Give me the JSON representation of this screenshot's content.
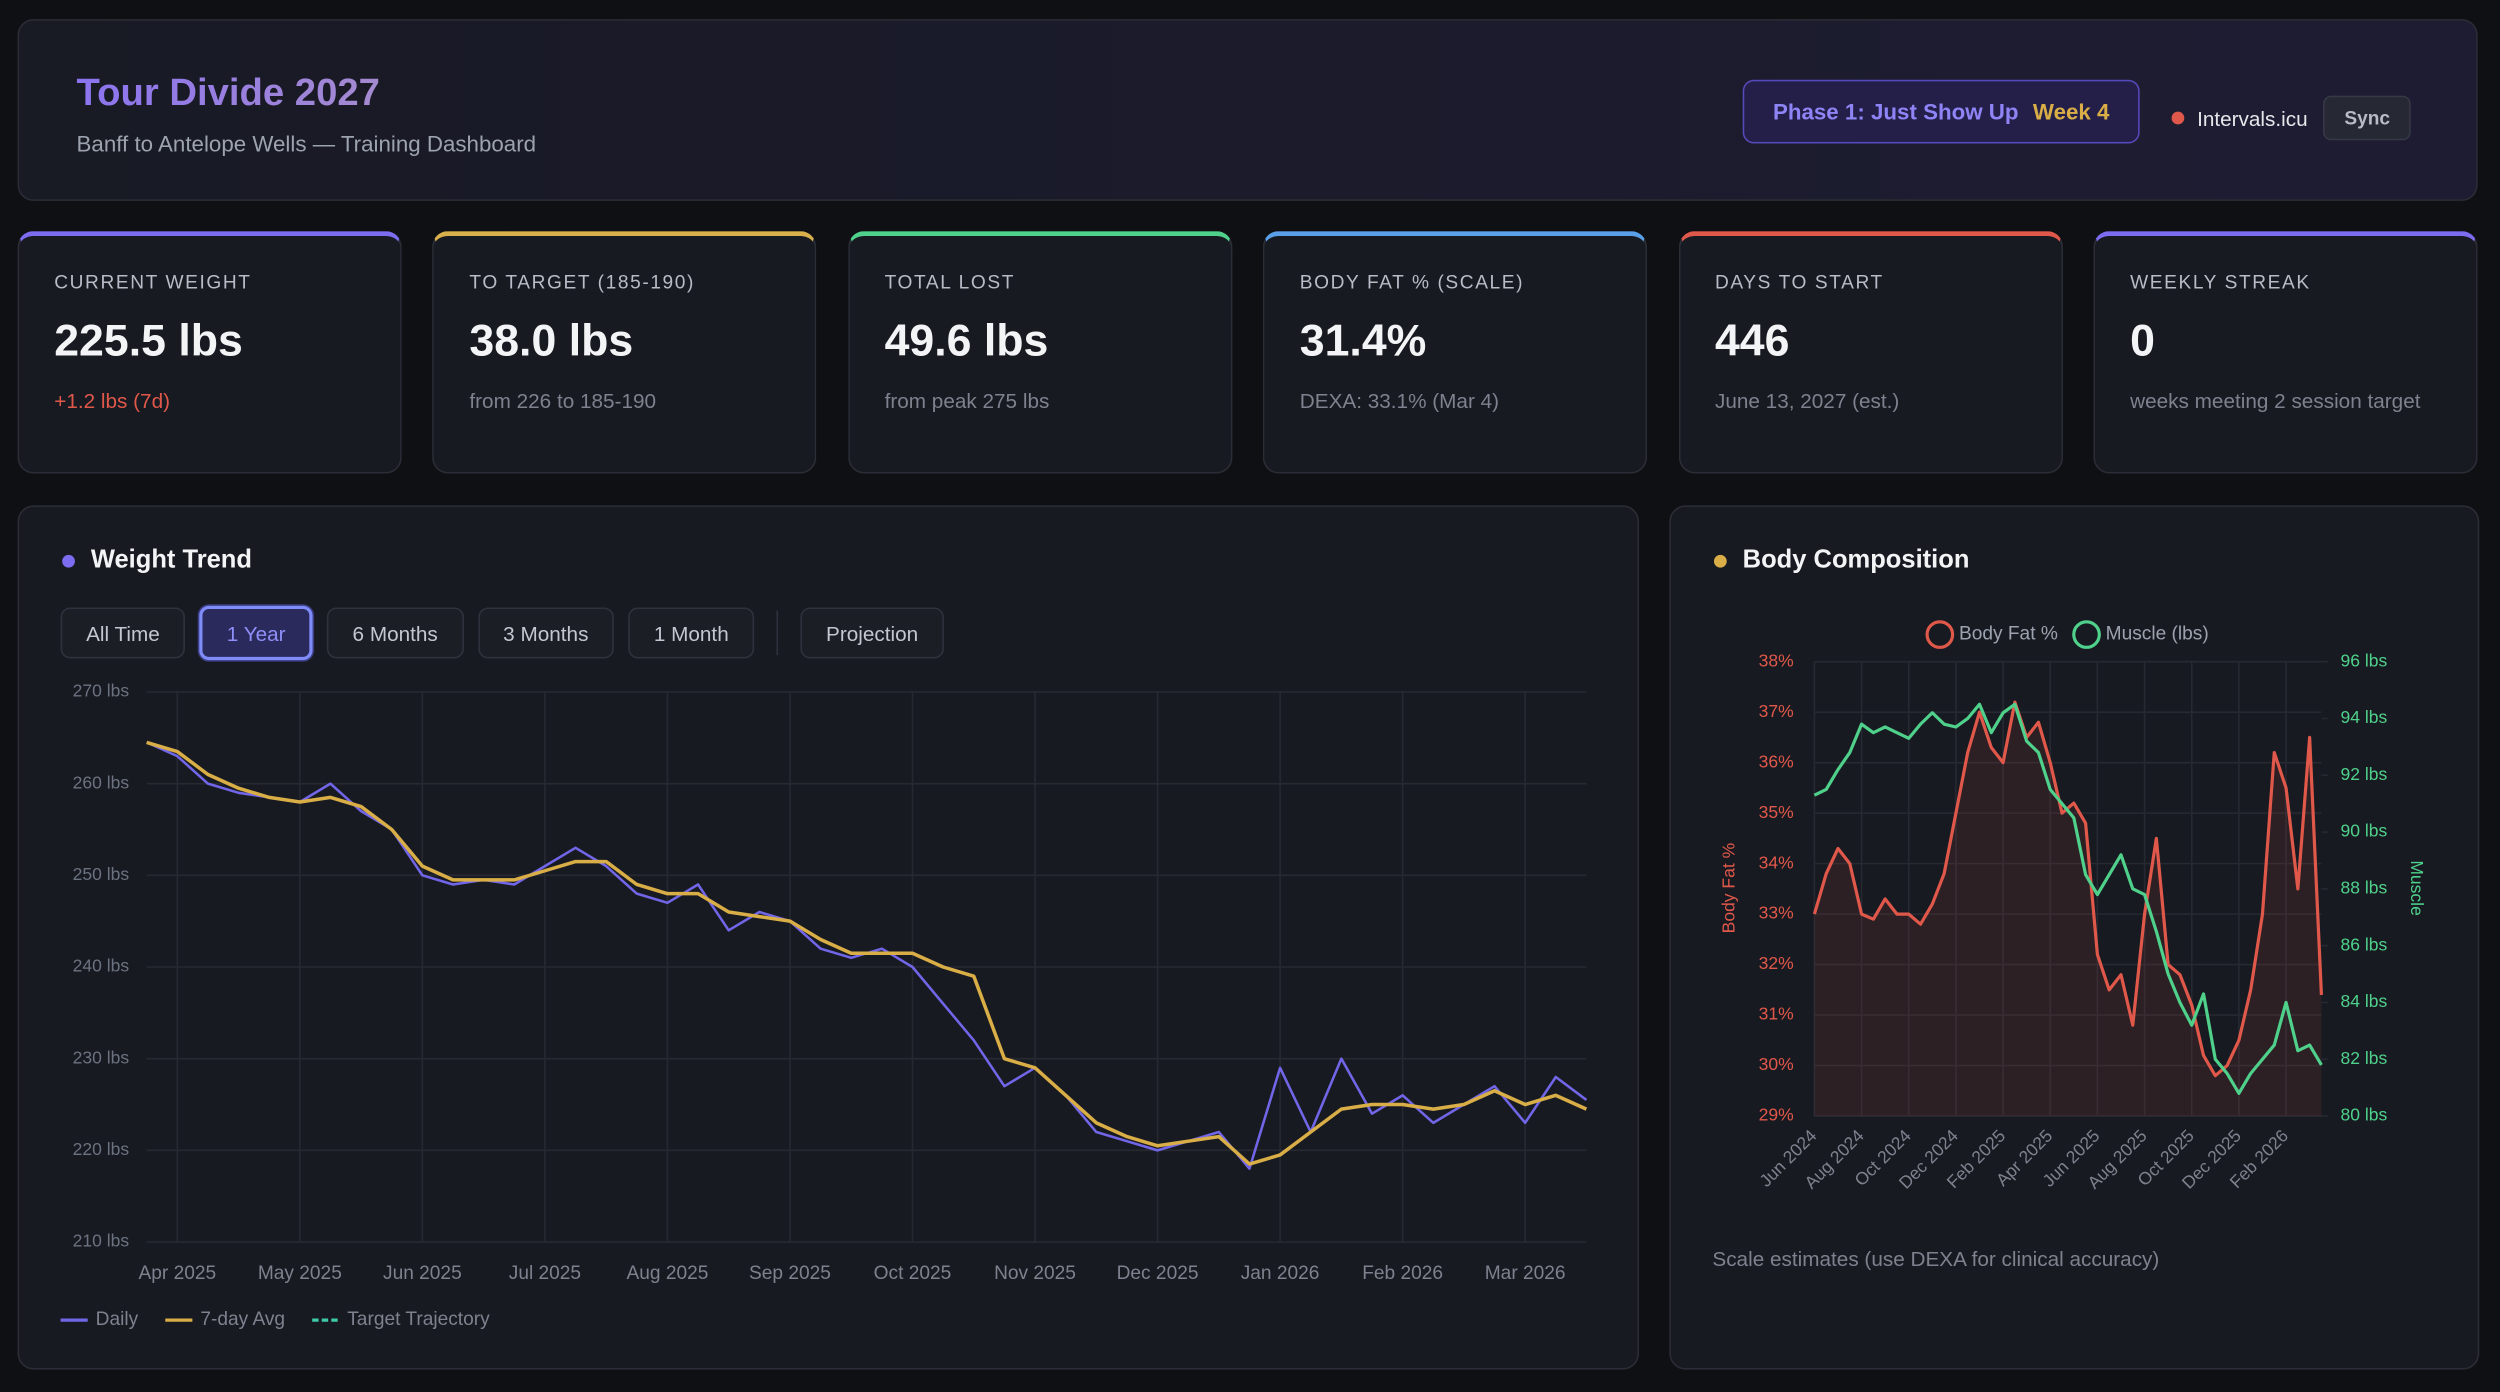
{
  "header": {
    "title": "Tour Divide 2027",
    "subtitle": "Banff to Antelope Wells — Training Dashboard",
    "phase": "Phase 1: Just Show Up",
    "week": "Week 4",
    "integration": "Intervals.icu",
    "sync": "Sync"
  },
  "cards": [
    {
      "label": "CURRENT WEIGHT",
      "value": "225.5 lbs",
      "sub": "+1.2 lbs (7d)",
      "color": "#7c6cf0",
      "sub_color": "#e0584a"
    },
    {
      "label": "TO TARGET (185-190)",
      "value": "38.0 lbs",
      "sub": "from 226 to 185-190",
      "color": "#d8b04c"
    },
    {
      "label": "TOTAL LOST",
      "value": "49.6 lbs",
      "sub": "from peak 275 lbs",
      "color": "#4fd18b"
    },
    {
      "label": "BODY FAT % (SCALE)",
      "value": "31.4%",
      "sub": "DEXA: 33.1% (Mar 4)",
      "color": "#5aa0e8"
    },
    {
      "label": "DAYS TO START",
      "value": "446",
      "sub": "June 13, 2027 (est.)",
      "color": "#e0584a"
    },
    {
      "label": "WEEKLY STREAK",
      "value": "0",
      "sub": "weeks meeting 2 session target",
      "color": "#7c6cf0"
    }
  ],
  "weight_panel": {
    "title": "Weight Trend",
    "ranges": [
      {
        "label": "All Time",
        "active": false
      },
      {
        "label": "1 Year",
        "active": true
      },
      {
        "label": "6 Months",
        "active": false
      },
      {
        "label": "3 Months",
        "active": false
      },
      {
        "label": "1 Month",
        "active": false
      }
    ],
    "projection": "Projection"
  },
  "composition_panel": {
    "title": "Body Composition",
    "note": "Scale estimates (use DEXA for clinical accuracy)"
  },
  "chart_data": [
    {
      "type": "line",
      "legend": "bottom-left",
      "grid": true,
      "categories": [
        null,
        "Apr 2025",
        null,
        null,
        null,
        "May 2025",
        null,
        null,
        null,
        "Jun 2025",
        null,
        null,
        null,
        "Jul 2025",
        null,
        null,
        null,
        "Aug 2025",
        null,
        null,
        null,
        "Sep 2025",
        null,
        null,
        null,
        "Oct 2025",
        null,
        null,
        null,
        "Nov 2025",
        null,
        null,
        null,
        "Dec 2025",
        null,
        null,
        null,
        "Jan 2026",
        null,
        null,
        null,
        "Feb 2026",
        null,
        null,
        null,
        "Mar 2026",
        null,
        null
      ],
      "ylim": [
        210,
        270
      ],
      "yticks": [
        {
          "value": 210,
          "label": "210 lbs"
        },
        {
          "value": 220,
          "label": "220 lbs"
        },
        {
          "value": 230,
          "label": "230 lbs"
        },
        {
          "value": 240,
          "label": "240 lbs"
        },
        {
          "value": 250,
          "label": "250 lbs"
        },
        {
          "value": 260,
          "label": "260 lbs"
        },
        {
          "value": 270,
          "label": "270 lbs"
        }
      ],
      "series": [
        {
          "name": "Daily",
          "color": "#7166e8",
          "values": [
            264.5,
            263,
            260,
            259,
            258.5,
            258,
            260,
            257,
            255,
            250,
            249,
            249.5,
            249,
            251,
            253,
            251,
            248,
            247,
            249,
            244,
            246,
            245,
            242,
            241,
            242,
            240,
            236,
            232,
            227,
            229,
            226,
            222,
            221,
            220,
            221,
            222,
            218,
            229,
            222,
            230,
            224,
            226,
            223,
            225,
            227,
            223,
            228,
            225.5
          ]
        },
        {
          "name": "7-day Avg",
          "color": "#d9ae47",
          "values": [
            264.5,
            263.5,
            261,
            259.5,
            258.5,
            258,
            258.5,
            257.5,
            255,
            251,
            249.5,
            249.5,
            249.5,
            250.5,
            251.5,
            251.5,
            249,
            248,
            248,
            246,
            245.5,
            245,
            243,
            241.5,
            241.5,
            241.5,
            240,
            239,
            230,
            229,
            226,
            223,
            221.5,
            220.5,
            221,
            221.5,
            218.5,
            219.5,
            222,
            224.5,
            225,
            225,
            224.5,
            225,
            226.5,
            225,
            226,
            224.5
          ]
        },
        {
          "name": "Target Trajectory",
          "color": "#3ec9a7",
          "dash": true,
          "values": [
            null,
            null,
            null,
            null,
            null,
            null,
            null,
            null,
            null,
            null,
            null,
            null,
            null,
            null,
            null,
            null,
            null,
            null,
            null,
            null,
            null,
            null,
            null,
            null,
            null,
            null,
            null,
            null,
            null,
            null,
            null,
            null,
            null,
            null,
            null,
            null,
            null,
            null,
            null,
            null,
            null,
            null,
            null,
            null,
            null,
            null,
            null,
            null
          ]
        }
      ]
    },
    {
      "type": "line",
      "legend": "top",
      "grid": true,
      "ylabel": "Body Fat %",
      "y2label": "Muscle",
      "categories": [
        "Jun 2024",
        null,
        null,
        null,
        "Aug 2024",
        null,
        null,
        null,
        "Oct 2024",
        null,
        null,
        null,
        "Dec 2024",
        null,
        null,
        null,
        "Feb 2025",
        null,
        null,
        null,
        "Apr 2025",
        null,
        null,
        null,
        "Jun 2025",
        null,
        null,
        null,
        "Aug 2025",
        null,
        null,
        null,
        "Oct 2025",
        null,
        null,
        null,
        "Dec 2025",
        null,
        null,
        null,
        "Feb 2026",
        null,
        null,
        null
      ],
      "ylim": [
        29,
        38
      ],
      "yticks": [
        {
          "value": 29,
          "label": "29%"
        },
        {
          "value": 30,
          "label": "30%"
        },
        {
          "value": 31,
          "label": "31%"
        },
        {
          "value": 32,
          "label": "32%"
        },
        {
          "value": 33,
          "label": "33%"
        },
        {
          "value": 34,
          "label": "34%"
        },
        {
          "value": 35,
          "label": "35%"
        },
        {
          "value": 36,
          "label": "36%"
        },
        {
          "value": 37,
          "label": "37%"
        },
        {
          "value": 38,
          "label": "38%"
        }
      ],
      "y2lim": [
        80,
        96
      ],
      "y2ticks": [
        {
          "value": 80,
          "label": "80 lbs"
        },
        {
          "value": 82,
          "label": "82 lbs"
        },
        {
          "value": 84,
          "label": "84 lbs"
        },
        {
          "value": 86,
          "label": "86 lbs"
        },
        {
          "value": 88,
          "label": "88 lbs"
        },
        {
          "value": 90,
          "label": "90 lbs"
        },
        {
          "value": 92,
          "label": "92 lbs"
        },
        {
          "value": 94,
          "label": "94 lbs"
        },
        {
          "value": 96,
          "label": "96 lbs"
        }
      ],
      "series": [
        {
          "name": "Body Fat %",
          "color": "#e0584a",
          "fill": true,
          "values": [
            33.0,
            33.8,
            34.3,
            34.0,
            33.0,
            32.9,
            33.3,
            33.0,
            33.0,
            32.8,
            33.2,
            33.8,
            35.0,
            36.2,
            37.0,
            36.3,
            36.0,
            37.2,
            36.5,
            36.8,
            36.0,
            35.0,
            35.2,
            34.8,
            32.2,
            31.5,
            31.8,
            30.8,
            33.0,
            34.5,
            32.0,
            31.8,
            31.2,
            30.2,
            29.8,
            30.0,
            30.5,
            31.5,
            33.0,
            36.2,
            35.5,
            33.5,
            36.5,
            31.4
          ]
        },
        {
          "name": "Muscle (lbs)",
          "color": "#4fd18b",
          "axis": "y2",
          "values": [
            91.3,
            91.5,
            92.2,
            92.8,
            93.8,
            93.5,
            93.7,
            93.5,
            93.3,
            93.8,
            94.2,
            93.8,
            93.7,
            94.0,
            94.5,
            93.5,
            94.2,
            94.5,
            93.2,
            92.8,
            91.5,
            91.0,
            90.5,
            88.5,
            87.8,
            88.5,
            89.2,
            88.0,
            87.8,
            86.5,
            85.0,
            84.0,
            83.2,
            84.3,
            82.0,
            81.5,
            80.8,
            81.5,
            82.0,
            82.5,
            84.0,
            82.3,
            82.5,
            81.8
          ]
        }
      ]
    }
  ]
}
